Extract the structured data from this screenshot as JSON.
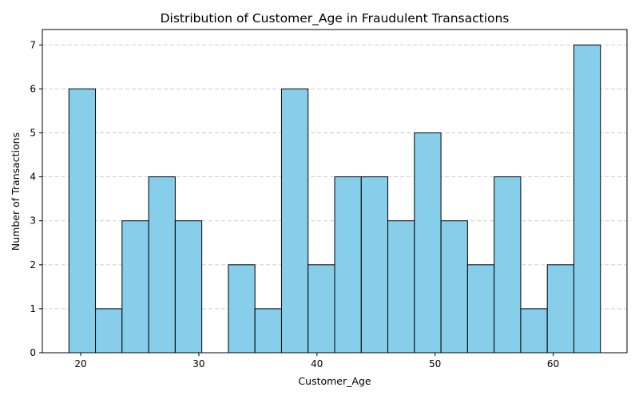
{
  "chart_data": {
    "type": "bar",
    "title": "Distribution of Customer_Age in Fraudulent Transactions",
    "xlabel": "Customer_Age",
    "ylabel": "Number of Transactions",
    "bin_start": 19,
    "bin_end": 64,
    "bin_count": 20,
    "bins": [
      {
        "x0": 19.0,
        "x1": 21.25,
        "value": 6
      },
      {
        "x0": 21.25,
        "x1": 23.5,
        "value": 1
      },
      {
        "x0": 23.5,
        "x1": 25.75,
        "value": 3
      },
      {
        "x0": 25.75,
        "x1": 28.0,
        "value": 4
      },
      {
        "x0": 28.0,
        "x1": 30.25,
        "value": 3
      },
      {
        "x0": 30.25,
        "x1": 32.5,
        "value": 0
      },
      {
        "x0": 32.5,
        "x1": 34.75,
        "value": 2
      },
      {
        "x0": 34.75,
        "x1": 37.0,
        "value": 1
      },
      {
        "x0": 37.0,
        "x1": 39.25,
        "value": 6
      },
      {
        "x0": 39.25,
        "x1": 41.5,
        "value": 2
      },
      {
        "x0": 41.5,
        "x1": 43.75,
        "value": 4
      },
      {
        "x0": 43.75,
        "x1": 46.0,
        "value": 4
      },
      {
        "x0": 46.0,
        "x1": 48.25,
        "value": 3
      },
      {
        "x0": 48.25,
        "x1": 50.5,
        "value": 5
      },
      {
        "x0": 50.5,
        "x1": 52.75,
        "value": 3
      },
      {
        "x0": 52.75,
        "x1": 55.0,
        "value": 2
      },
      {
        "x0": 55.0,
        "x1": 57.25,
        "value": 4
      },
      {
        "x0": 57.25,
        "x1": 59.5,
        "value": 1
      },
      {
        "x0": 59.5,
        "x1": 61.75,
        "value": 2
      },
      {
        "x0": 61.75,
        "x1": 64.0,
        "value": 7
      }
    ],
    "xlim": [
      16.75,
      66.25
    ],
    "ylim": [
      0,
      7.35
    ],
    "x_ticks": [
      20,
      30,
      40,
      50,
      60
    ],
    "y_ticks": [
      0,
      1,
      2,
      3,
      4,
      5,
      6,
      7
    ],
    "grid": "y-dashed",
    "colors": {
      "bar_fill": "#87ceeb",
      "bar_edge": "#000000",
      "grid": "#c8c8c8"
    }
  }
}
